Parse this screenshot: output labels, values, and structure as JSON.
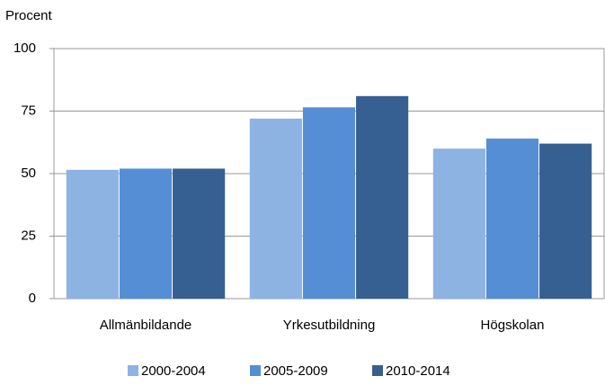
{
  "chart_data": {
    "type": "bar",
    "y_label": "Procent",
    "categories": [
      "Allmänbildande",
      "Yrkesutbildning",
      "Högskolan"
    ],
    "series": [
      {
        "name": "2000-2004",
        "color": "#8db3e2",
        "values": [
          51.5,
          72,
          60
        ]
      },
      {
        "name": "2005-2009",
        "color": "#558ed5",
        "values": [
          52,
          76.5,
          64
        ]
      },
      {
        "name": "2010-2014",
        "color": "#366092",
        "values": [
          52,
          81,
          62
        ]
      }
    ],
    "ylim": [
      0,
      100
    ],
    "yticks": [
      0,
      25,
      50,
      75,
      100
    ],
    "grid": true
  }
}
